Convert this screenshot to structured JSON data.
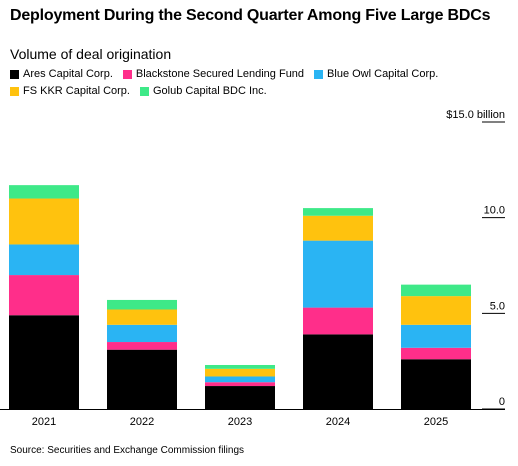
{
  "title": "Deployment During the Second Quarter Among Five Large BDCs",
  "subtitle": "Volume of deal origination",
  "source": "Source: Securities and Exchange Commission filings",
  "chart_data": {
    "type": "bar",
    "stacked": true,
    "title": "Deployment During the Second Quarter Among Five Large BDCs",
    "subtitle": "Volume of deal origination",
    "categories": [
      "2021",
      "2022",
      "2023",
      "2024",
      "2025"
    ],
    "series": [
      {
        "name": "Ares Capital Corp.",
        "color": "#000000",
        "values": [
          4.9,
          3.1,
          1.2,
          3.9,
          2.6
        ]
      },
      {
        "name": "Blackstone Secured Lending Fund",
        "color": "#ff2e8a",
        "values": [
          2.1,
          0.4,
          0.2,
          1.4,
          0.6
        ]
      },
      {
        "name": "Blue Owl Capital Corp.",
        "color": "#2ab4f3",
        "values": [
          1.6,
          0.9,
          0.3,
          3.5,
          1.2
        ]
      },
      {
        "name": "FS KKR Capital Corp.",
        "color": "#ffc20e",
        "values": [
          2.4,
          0.8,
          0.4,
          1.3,
          1.5
        ]
      },
      {
        "name": "Golub Capital BDC Inc.",
        "color": "#3ee988",
        "values": [
          0.7,
          0.5,
          0.2,
          0.4,
          0.6
        ]
      }
    ],
    "yticks": [
      {
        "value": 0,
        "label": "0"
      },
      {
        "value": 5,
        "label": "5.0"
      },
      {
        "value": 10,
        "label": "10.0"
      },
      {
        "value": 15,
        "label": "$15.0 billion"
      }
    ],
    "ylim": [
      0,
      15
    ],
    "ylabel": "",
    "xlabel": "",
    "grid": false,
    "legend_position": "top-left"
  }
}
